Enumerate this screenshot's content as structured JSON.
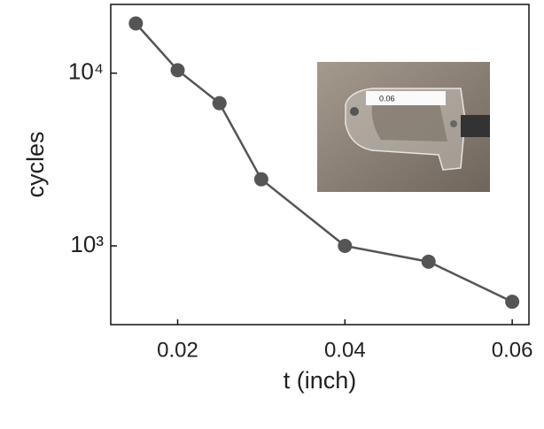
{
  "chart_data": {
    "type": "line",
    "x_label": "t (inch)",
    "y_label": "cycles",
    "x": [
      0.015,
      0.02,
      0.025,
      0.03,
      0.04,
      0.05,
      0.06
    ],
    "series": [
      {
        "name": "cycles",
        "color": "#555555",
        "values": [
          19400,
          10400,
          6700,
          2430,
          1000,
          810,
          475
        ]
      }
    ],
    "xlim": [
      0.012,
      0.062
    ],
    "xticks": [
      0.02,
      0.04,
      0.06
    ],
    "ylim": [
      350,
      25000
    ],
    "log_y": true,
    "yticks": [
      {
        "value": 1000,
        "label": "10³"
      },
      {
        "value": 10000,
        "label": "10⁴"
      }
    ],
    "annotations": [
      "0.06"
    ]
  }
}
